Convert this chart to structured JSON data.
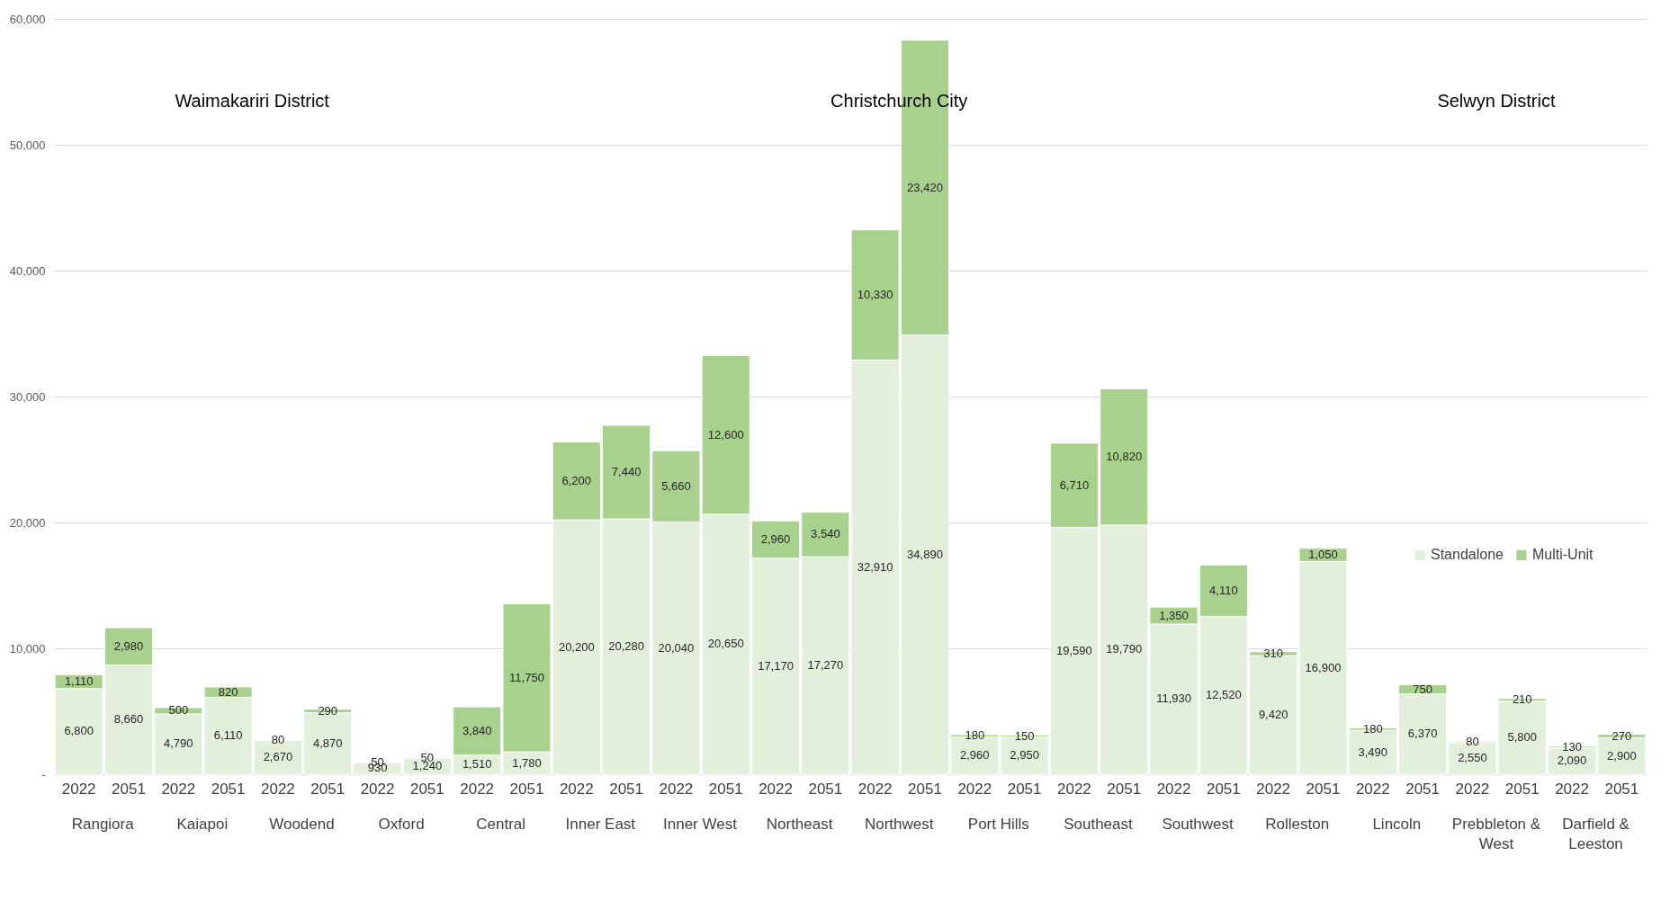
{
  "chart_data": {
    "type": "bar",
    "stacked": true,
    "grid": "y",
    "legend": "right",
    "categories": [
      "2022",
      "2051",
      "2022",
      "2051",
      "2022",
      "2051",
      "2022",
      "2051",
      "2022",
      "2051",
      "2022",
      "2051",
      "2022",
      "2051",
      "2022",
      "2051",
      "2022",
      "2051",
      "2022",
      "2051",
      "2022",
      "2051",
      "2022",
      "2051",
      "2022",
      "2051",
      "2022",
      "2051",
      "2022",
      "2051",
      "2022",
      "2051"
    ],
    "series": [
      {
        "name": "Standalone",
        "color": "#e2efda",
        "values": [
          6800,
          8660,
          4790,
          6110,
          2670,
          4870,
          930,
          1240,
          1510,
          1780,
          20200,
          20280,
          20040,
          20650,
          17170,
          17270,
          32910,
          34890,
          2960,
          2950,
          19590,
          19790,
          11930,
          12520,
          9420,
          16900,
          3490,
          6370,
          2550,
          5800,
          2090,
          2900
        ],
        "value_labels": [
          "6,800",
          "8,660",
          "4,790",
          "6,110",
          "2,670",
          "4,870",
          "930",
          "1,240",
          "1,510",
          "1,780",
          "20,200",
          "20,280",
          "20,040",
          "20,650",
          "17,170",
          "17,270",
          "32,910",
          "34,890",
          "2,960",
          "2,950",
          "19,590",
          "19,790",
          "11,930",
          "12,520",
          "9,420",
          "16,900",
          "3,490",
          "6,370",
          "2,550",
          "5,800",
          "2,090",
          "2,900"
        ]
      },
      {
        "name": "Multi-Unit",
        "color": "#a9d18e",
        "values": [
          1110,
          2980,
          500,
          820,
          80,
          290,
          50,
          50,
          3840,
          11750,
          6200,
          7440,
          5660,
          12600,
          2960,
          3540,
          10330,
          23420,
          180,
          150,
          6710,
          10820,
          1350,
          4110,
          310,
          1050,
          180,
          750,
          80,
          210,
          130,
          270
        ],
        "value_labels": [
          "1,110",
          "2,980",
          "500",
          "820",
          "80",
          "290",
          "50",
          "50",
          "3,840",
          "11,750",
          "6,200",
          "7,440",
          "5,660",
          "12,600",
          "2,960",
          "3,540",
          "10,330",
          "23,420",
          "180",
          "150",
          "6,710",
          "10,820",
          "1,350",
          "4,110",
          "310",
          "1,050",
          "180",
          "750",
          "80",
          "210",
          "130",
          "270"
        ]
      }
    ],
    "ylim": [
      0,
      60000
    ],
    "yticks": [
      {
        "value": 0,
        "label": "-"
      },
      {
        "value": 10000,
        "label": "10,000"
      },
      {
        "value": 20000,
        "label": "20,000"
      },
      {
        "value": 30000,
        "label": "30,000"
      },
      {
        "value": 40000,
        "label": "40,000"
      },
      {
        "value": 50000,
        "label": "50,000"
      },
      {
        "value": 60000,
        "label": "60,000"
      }
    ],
    "annotations": [
      "Waimakariri District",
      "Christchurch City",
      "Selwyn District",
      "Rangiora",
      "Kaiapoi",
      "Woodend",
      "Oxford",
      "Central",
      "Inner East",
      "Inner West",
      "Northeast",
      "Northwest",
      "Port Hills",
      "Southeast",
      "Southwest",
      "Rolleston",
      "Lincoln",
      "Prebbleton & West",
      "Darfield & Leeston"
    ]
  }
}
